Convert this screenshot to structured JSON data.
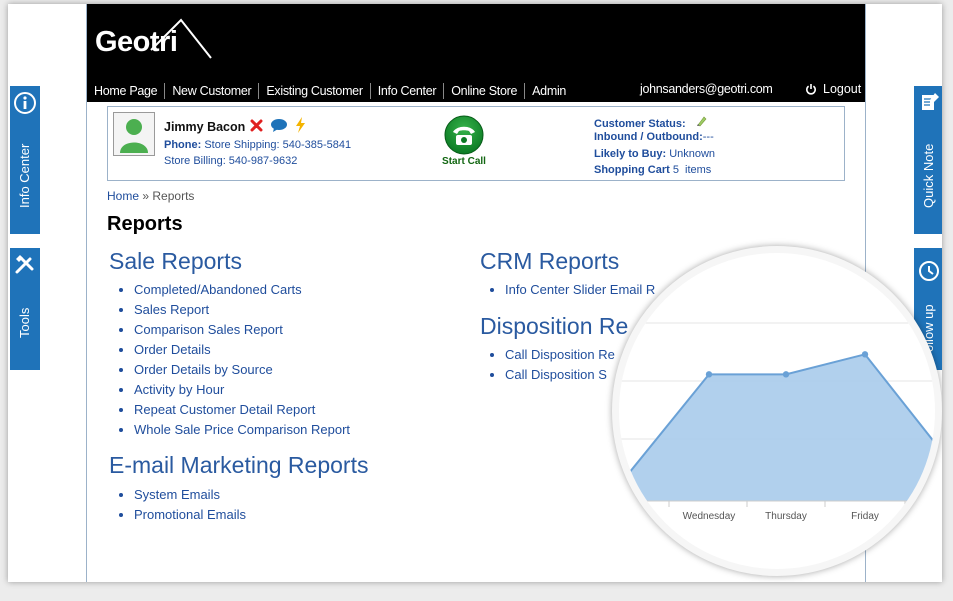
{
  "header": {
    "logo": "Geotri",
    "nav": [
      "Home Page",
      "New Customer",
      "Existing Customer",
      "Info Center",
      "Online Store",
      "Admin"
    ],
    "user_email": "johnsanders@geotri.com",
    "logout_label": "Logout"
  },
  "customer": {
    "name": "Jimmy Bacon",
    "phone_label": "Phone:",
    "phone_shipping": "Store Shipping: 540-385-5841",
    "phone_billing": "Store Billing: 540-987-9632",
    "start_call_label": "Start Call",
    "status_label": "Customer Status:",
    "inbound_label": "Inbound / Outbound:",
    "inbound_value": "---",
    "likely_label": "Likely to Buy:",
    "likely_value": "Unknown",
    "cart_label": "Shopping Cart",
    "cart_count": "5",
    "cart_suffix": "items"
  },
  "breadcrumb": {
    "home": "Home",
    "separator": "»",
    "current": "Reports"
  },
  "page_title": "Reports",
  "sale_reports": {
    "title": "Sale Reports",
    "items": [
      "Completed/Abandoned Carts",
      "Sales Report",
      "Comparison Sales Report",
      "Order Details",
      "Order Details by Source",
      "Activity by Hour",
      "Repeat Customer Detail Report",
      "Whole Sale Price Comparison Report"
    ]
  },
  "email_reports": {
    "title": "E-mail Marketing Reports",
    "items": [
      "System Emails",
      "Promotional Emails"
    ]
  },
  "crm_reports": {
    "title": "CRM Reports",
    "items": [
      "Info Center Slider Email R"
    ]
  },
  "disposition_reports": {
    "title": "Disposition Re",
    "items": [
      "Call Disposition Re",
      "Call Disposition S"
    ]
  },
  "side_tabs": {
    "info_center": "Info Center",
    "tools": "Tools",
    "quick_note": "Quick Note",
    "follow_up": "Follow up"
  },
  "chart_data": {
    "type": "area",
    "categories": [
      "Wednesday",
      "Thursday",
      "Friday"
    ],
    "series": [
      {
        "values": [
          0.95,
          0.95,
          1.1
        ]
      }
    ],
    "grid": true
  },
  "colors": {
    "accent": "#1f73b9",
    "link": "#1f4d9c",
    "section_title": "#2a5aa0",
    "chart_fill": "#a9cbeb",
    "chart_line": "#6aa1d6"
  }
}
